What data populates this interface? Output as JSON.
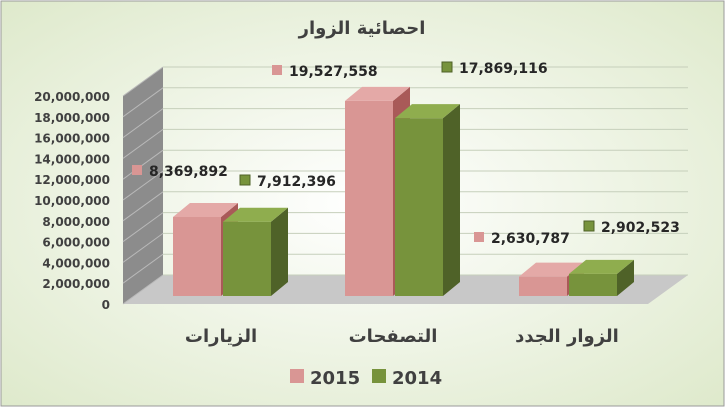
{
  "chart_data": {
    "type": "bar",
    "title": "احصائية الزوار",
    "categories": [
      "الزيارات",
      "التصفحات",
      "الزوار الجدد"
    ],
    "series": [
      {
        "name": "2015",
        "values": [
          8369892,
          19527558,
          2630787
        ],
        "labels": [
          "8,369,892",
          "19,527,558",
          "2,630,787"
        ]
      },
      {
        "name": "2014",
        "values": [
          7912396,
          17869116,
          2902523
        ],
        "labels": [
          "7,912,396",
          "17,869,116",
          "2,902,523"
        ]
      }
    ],
    "yticks": [
      0,
      2000000,
      4000000,
      6000000,
      8000000,
      10000000,
      12000000,
      14000000,
      16000000,
      18000000,
      20000000
    ],
    "ytick_labels": [
      "0",
      "2,000,000",
      "4,000,000",
      "6,000,000",
      "8,000,000",
      "10,000,000",
      "12,000,000",
      "14,000,000",
      "16,000,000",
      "18,000,000",
      "20,000,000"
    ],
    "ylim": [
      0,
      20000000
    ],
    "grid": true,
    "style_3d": true,
    "legend_position": "bottom",
    "colors": {
      "series_2015": "#d99694",
      "series_2015_side": "#a95a58",
      "series_2015_top": "#e4a9a7",
      "series_2014": "#77933c",
      "series_2014_side": "#4f6228",
      "series_2014_top": "#8fad4e",
      "background": "#eef4e4",
      "wall": "#8c8c8c",
      "floor": "#c8c8c8"
    }
  }
}
